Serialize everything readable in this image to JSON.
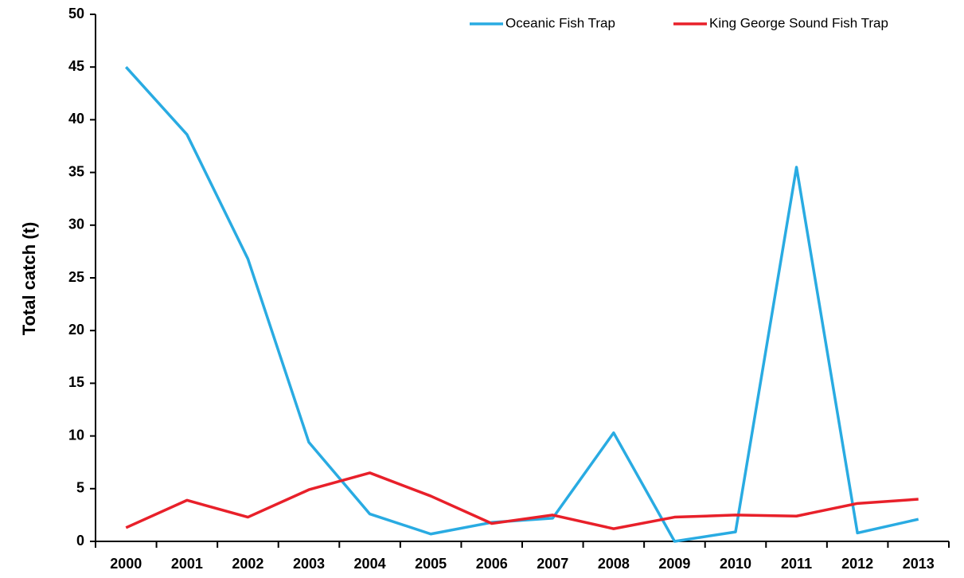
{
  "chart_data": {
    "type": "line",
    "ylabel": "Total catch (t)",
    "categories": [
      "2000",
      "2001",
      "2002",
      "2003",
      "2004",
      "2005",
      "2006",
      "2007",
      "2008",
      "2009",
      "2010",
      "2011",
      "2012",
      "2013"
    ],
    "series": [
      {
        "name": "Oceanic Fish Trap",
        "color": "#29abe2",
        "values": [
          45,
          38.6,
          26.8,
          9.4,
          2.6,
          0.7,
          1.8,
          2.2,
          10.3,
          0,
          0.9,
          35.5,
          0.8,
          2.1
        ]
      },
      {
        "name": "King George Sound Fish Trap",
        "color": "#e8202a",
        "values": [
          1.3,
          3.9,
          2.3,
          4.9,
          6.5,
          4.3,
          1.7,
          2.5,
          1.2,
          2.3,
          2.5,
          2.4,
          3.6,
          4.0
        ]
      }
    ],
    "ylim": [
      0,
      50
    ],
    "yticks": [
      0,
      5,
      10,
      15,
      20,
      25,
      30,
      35,
      40,
      45,
      50
    ],
    "grid": false,
    "legend": "upper right"
  }
}
